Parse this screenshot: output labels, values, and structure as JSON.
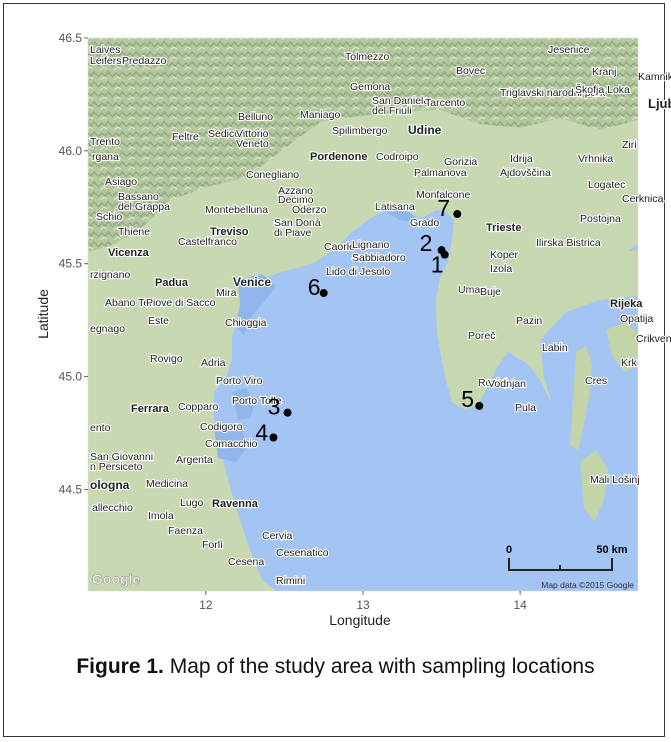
{
  "axes": {
    "xlabel": "Longitude",
    "ylabel": "Latitude",
    "xticks": [
      "12",
      "13",
      "14"
    ],
    "yticks": [
      "46.5",
      "46.0",
      "45.5",
      "45.0",
      "44.5"
    ]
  },
  "map": {
    "attribution_logo": "Google",
    "attribution": "Map data ©2015 Google",
    "scalebar": {
      "left_label": "0",
      "right_label": "50 km"
    },
    "colors": {
      "sea": "#a4c4f4",
      "land": "#c8d9b1",
      "relief": "#97ad85",
      "lagoon": "#8fb7ec"
    }
  },
  "places": [
    {
      "name": "Jesenice"
    },
    {
      "name": "Tolmezzo"
    },
    {
      "name": "Bovec"
    },
    {
      "name": "Kranj"
    },
    {
      "name": "Kamnik"
    },
    {
      "name": "Laives"
    },
    {
      "name": "Leifers"
    },
    {
      "name": "Predazzo"
    },
    {
      "name": "Gemona"
    },
    {
      "name": "Triglavski narodni park"
    },
    {
      "name": "Škofja Loka"
    },
    {
      "name": "Ljubljana"
    },
    {
      "name": "San Daniele"
    },
    {
      "name": "del Friuli"
    },
    {
      "name": "Tarcento"
    },
    {
      "name": "Belluno"
    },
    {
      "name": "Maniago"
    },
    {
      "name": "Feltre"
    },
    {
      "name": "Sedico"
    },
    {
      "name": "Vittorio"
    },
    {
      "name": "Veneto"
    },
    {
      "name": "Spilimbergo"
    },
    {
      "name": "Udine"
    },
    {
      "name": "Trento"
    },
    {
      "name": "rgana"
    },
    {
      "name": "Idrija"
    },
    {
      "name": "Vrhnika"
    },
    {
      "name": "Ziri"
    },
    {
      "name": "Pordenone"
    },
    {
      "name": "Codroipo"
    },
    {
      "name": "Gorizia"
    },
    {
      "name": "Ajdovščina"
    },
    {
      "name": "Asiago"
    },
    {
      "name": "Conegliano"
    },
    {
      "name": "Palmanova"
    },
    {
      "name": "Logatec"
    },
    {
      "name": "Bassano"
    },
    {
      "name": "del Grappa"
    },
    {
      "name": "Azzano"
    },
    {
      "name": "Decimo"
    },
    {
      "name": "Monfalcone"
    },
    {
      "name": "Cerknica"
    },
    {
      "name": "Montebelluna"
    },
    {
      "name": "Oderzo"
    },
    {
      "name": "Latisana"
    },
    {
      "name": "Schio"
    },
    {
      "name": "Thiene"
    },
    {
      "name": "Treviso"
    },
    {
      "name": "San Donà"
    },
    {
      "name": "di Piave"
    },
    {
      "name": "Grado"
    },
    {
      "name": "Trieste"
    },
    {
      "name": "Postojna"
    },
    {
      "name": "Castelfranco"
    },
    {
      "name": "Caorle"
    },
    {
      "name": "Lignano"
    },
    {
      "name": "Sabbiadoro"
    },
    {
      "name": "Koper"
    },
    {
      "name": "Ilirska Bistrica"
    },
    {
      "name": "Vicenza"
    },
    {
      "name": "Izola"
    },
    {
      "name": "rzignano"
    },
    {
      "name": "Padua"
    },
    {
      "name": "Venice"
    },
    {
      "name": "Lido di Jesolo"
    },
    {
      "name": "Umag"
    },
    {
      "name": "Buje"
    },
    {
      "name": "Rijeka"
    },
    {
      "name": "Abano Terme"
    },
    {
      "name": "Mira"
    },
    {
      "name": "Opatija"
    },
    {
      "name": "Piove di Sacco"
    },
    {
      "name": "egnago"
    },
    {
      "name": "Este"
    },
    {
      "name": "Chioggia"
    },
    {
      "name": "Poreč"
    },
    {
      "name": "Pazin"
    },
    {
      "name": "Crikven"
    },
    {
      "name": "Labin"
    },
    {
      "name": "Krk"
    },
    {
      "name": "Rovigo"
    },
    {
      "name": "Adria"
    },
    {
      "name": "Rovinj"
    },
    {
      "name": "Porto Viro"
    },
    {
      "name": "Vodnjan"
    },
    {
      "name": "Cres"
    },
    {
      "name": "Ferrara"
    },
    {
      "name": "Copparo"
    },
    {
      "name": "Porto Tolle"
    },
    {
      "name": "Pula"
    },
    {
      "name": "Codigoro"
    },
    {
      "name": "ento"
    },
    {
      "name": "Comacchio"
    },
    {
      "name": "San Giovanni"
    },
    {
      "name": "Argenta"
    },
    {
      "name": "n Persiceto"
    },
    {
      "name": "Mali Lošinj"
    },
    {
      "name": "ologna"
    },
    {
      "name": "Medicina"
    },
    {
      "name": "Lugo"
    },
    {
      "name": "Ravenna"
    },
    {
      "name": "Imola"
    },
    {
      "name": "allecchio"
    },
    {
      "name": "Faenza"
    },
    {
      "name": "Forlì"
    },
    {
      "name": "Cervia"
    },
    {
      "name": "Cesena"
    },
    {
      "name": "Cesenatico"
    },
    {
      "name": "Rimini"
    }
  ],
  "sites": [
    {
      "label": "1",
      "lon": 13.52,
      "lat": 45.54
    },
    {
      "label": "2",
      "lon": 13.5,
      "lat": 45.56
    },
    {
      "label": "3",
      "lon": 12.52,
      "lat": 44.84
    },
    {
      "label": "4",
      "lon": 12.43,
      "lat": 44.73
    },
    {
      "label": "5",
      "lon": 13.74,
      "lat": 44.87
    },
    {
      "label": "6",
      "lon": 12.75,
      "lat": 45.37
    },
    {
      "label": "7",
      "lon": 13.6,
      "lat": 45.72
    }
  ],
  "caption": {
    "label": "Figure 1.",
    "text": " Map of the study area with sampling locations"
  }
}
